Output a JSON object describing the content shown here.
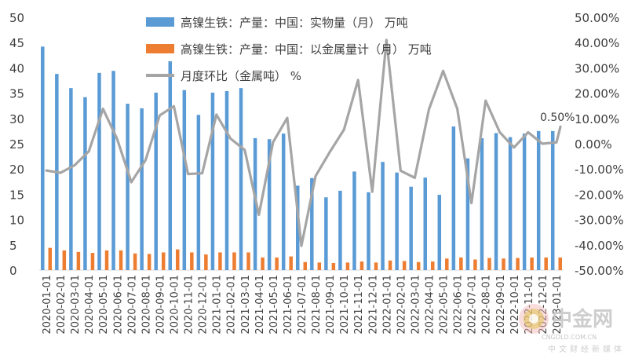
{
  "chart_data": {
    "type": "bar",
    "title": "",
    "xlabel": "",
    "ylabel": "",
    "ylim": [
      0,
      50
    ],
    "y2lim": [
      -0.5,
      0.5
    ],
    "y_ticks": [
      "0",
      "5",
      "10",
      "15",
      "20",
      "25",
      "30",
      "35",
      "40",
      "45",
      "50"
    ],
    "y2_ticks": [
      "-50.00%",
      "-40.00%",
      "-30.00%",
      "-20.00%",
      "-10.00%",
      "0.00%",
      "10.00%",
      "20.00%",
      "30.00%",
      "40.00%",
      "50.00%"
    ],
    "legend_position": "top",
    "categories": [
      "2020-01-01",
      "2020-02-01",
      "2020-03-01",
      "2020-04-01",
      "2020-05-01",
      "2020-06-01",
      "2020-07-01",
      "2020-08-01",
      "2020-09-01",
      "2020-10-01",
      "2020-11-01",
      "2020-12-01",
      "2021-01-01",
      "2021-02-01",
      "2021-03-01",
      "2021-04-01",
      "2021-05-01",
      "2021-06-01",
      "2021-07-01",
      "2021-08-01",
      "2021-09-01",
      "2021-10-01",
      "2021-11-01",
      "2021-12-01",
      "2022-01-01",
      "2022-02-01",
      "2022-03-01",
      "2022-04-01",
      "2022-05-01",
      "2022-06-01",
      "2022-07-01",
      "2022-08-01",
      "2022-09-01",
      "2022-10-01",
      "2022-11-01",
      "2022-12-01",
      "2023-01-01"
    ],
    "series": [
      {
        "name": "高镍生铁：产量：中国：实物量（月） 万吨",
        "type": "bar",
        "axis": "left",
        "color": "#5b9bd5",
        "values": [
          44.2,
          38.8,
          36.0,
          34.2,
          39.0,
          39.4,
          32.9,
          32.0,
          35.1,
          41.3,
          35.6,
          30.7,
          35.1,
          35.4,
          36.0,
          26.1,
          25.9,
          27.0,
          16.7,
          18.2,
          14.4,
          15.7,
          19.5,
          15.4,
          21.4,
          19.3,
          16.5,
          18.3,
          14.9,
          28.4,
          22.1,
          26.1,
          27.1,
          26.3,
          27.0,
          27.5,
          27.5
        ]
      },
      {
        "name": "高镍生铁：产量：中国：以金属量计（月） 万吨",
        "type": "bar",
        "axis": "left",
        "color": "#ed7d31",
        "values": [
          4.4,
          3.9,
          3.6,
          3.4,
          3.9,
          3.9,
          3.3,
          3.2,
          3.5,
          4.1,
          3.5,
          3.1,
          3.5,
          3.5,
          3.5,
          2.5,
          2.5,
          2.7,
          1.6,
          1.5,
          1.4,
          1.5,
          1.7,
          1.5,
          1.9,
          1.8,
          1.6,
          1.7,
          2.3,
          2.5,
          2.1,
          2.4,
          2.3,
          2.4,
          2.5,
          2.5,
          2.5
        ]
      },
      {
        "name": "月度环比（金属吨） %",
        "type": "line",
        "axis": "right",
        "color": "#a5a5a5",
        "values": [
          -0.106,
          -0.115,
          -0.085,
          -0.03,
          0.138,
          0.018,
          -0.152,
          -0.065,
          0.112,
          0.148,
          -0.12,
          -0.117,
          0.115,
          0.02,
          -0.025,
          -0.281,
          0.006,
          0.102,
          -0.404,
          -0.128,
          -0.033,
          0.055,
          0.252,
          -0.19,
          0.41,
          -0.107,
          -0.135,
          0.136,
          0.288,
          0.138,
          -0.235,
          0.17,
          0.045,
          -0.015,
          0.045,
          0.0,
          0.005
        ]
      }
    ],
    "annotations": [
      {
        "text": "0.50%",
        "category": "2023-01-01",
        "series": "月度环比（金属吨） %"
      }
    ]
  },
  "watermark": {
    "main": "中金网",
    "url": "CNGOLD.COM.CN",
    "sub": "中文财经新媒体"
  }
}
